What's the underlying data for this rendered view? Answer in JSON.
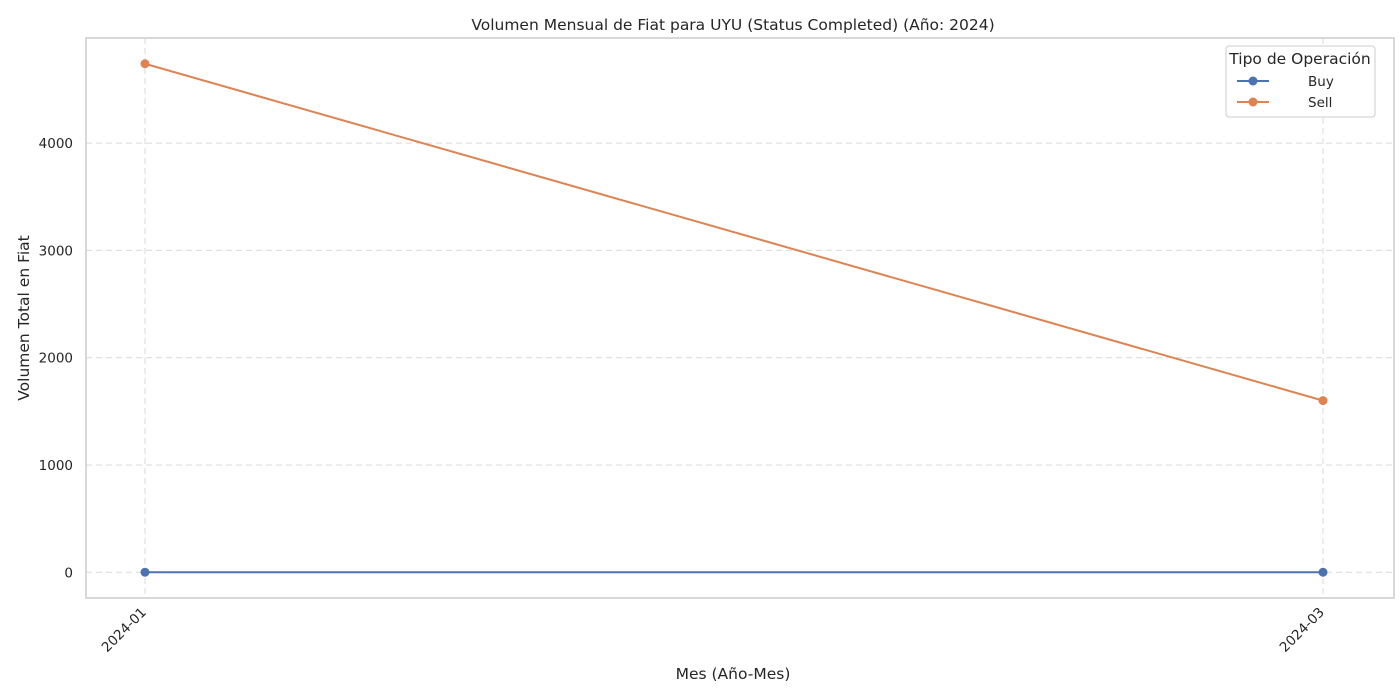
{
  "chart_data": {
    "type": "line",
    "title": "Volumen Mensual de Fiat para UYU (Status Completed) (Año: 2024)",
    "xlabel": "Mes (Año-Mes)",
    "ylabel": "Volumen Total en Fiat",
    "categories": [
      "2024-01",
      "2024-03"
    ],
    "series": [
      {
        "name": "Buy",
        "values": [
          0,
          0
        ],
        "color": "#4c72b0"
      },
      {
        "name": "Sell",
        "values": [
          4740,
          1600
        ],
        "color": "#dd8452"
      }
    ],
    "ylim": [
      -240,
      4980
    ],
    "yticks": [
      0,
      1000,
      2000,
      3000,
      4000
    ],
    "grid": true,
    "legend": {
      "title": "Tipo de Operación",
      "position": "top-right"
    }
  }
}
